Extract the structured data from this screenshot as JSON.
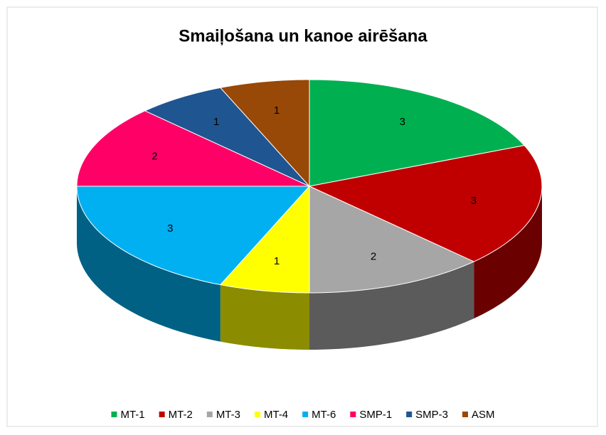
{
  "chart_data": {
    "type": "pie3d",
    "title": "Smaiļošana un kanoe airēšana",
    "categories": [
      "MT-1",
      "MT-2",
      "MT-3",
      "MT-4",
      "MT-6",
      "SMP-1",
      "SMP-3",
      "ASM"
    ],
    "values": [
      3,
      3,
      2,
      1,
      3,
      2,
      1,
      1
    ],
    "colors": [
      "#00b050",
      "#c00000",
      "#a6a6a6",
      "#ffff00",
      "#00b0f0",
      "#ff0066",
      "#1f5591",
      "#984807"
    ],
    "legend": "bottom"
  }
}
